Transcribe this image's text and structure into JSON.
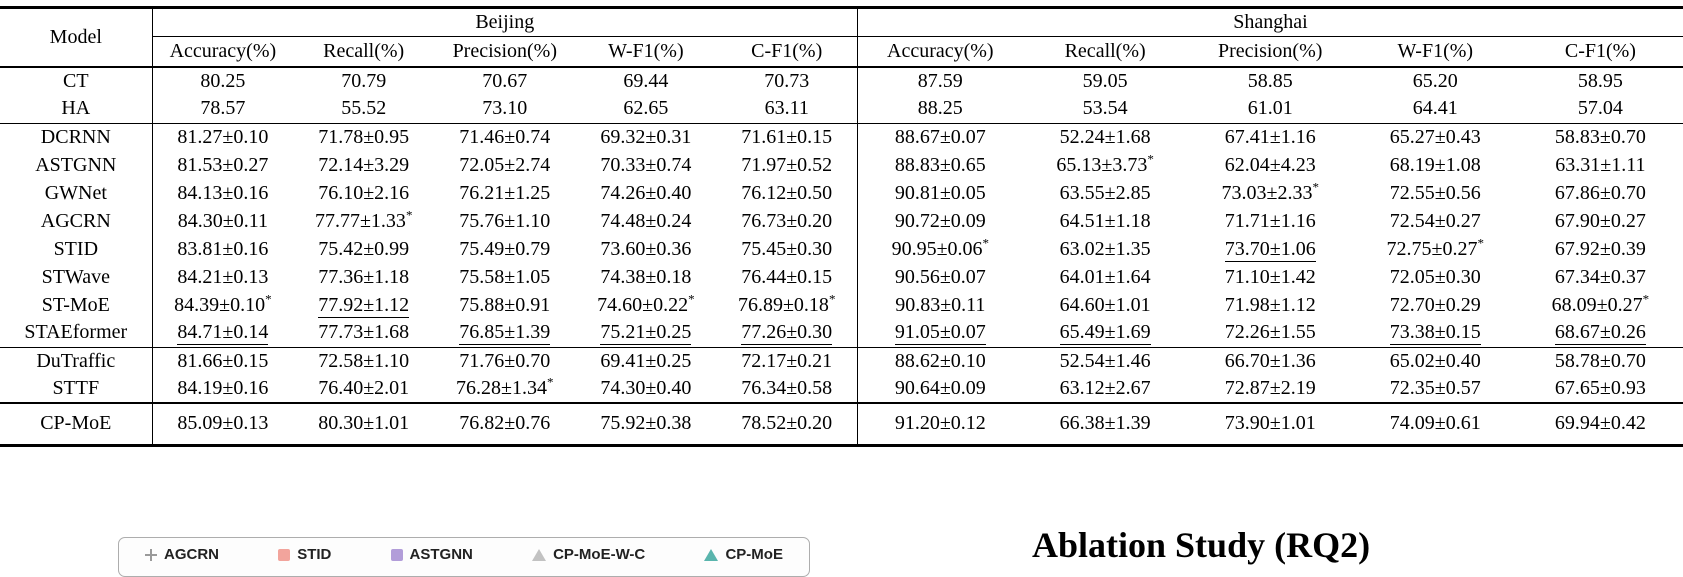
{
  "table": {
    "model_header": "Model",
    "regions": [
      "Beijing",
      "Shanghai"
    ],
    "metrics": [
      "Accuracy(%)",
      "Recall(%)",
      "Precision(%)",
      "W-F1(%)",
      "C-F1(%)"
    ],
    "groups": [
      {
        "bold": false,
        "rows": [
          {
            "model": "CT",
            "cells": [
              "80.25",
              "70.79",
              "70.67",
              "69.44",
              "70.73",
              "87.59",
              "59.05",
              "58.85",
              "65.20",
              "58.95"
            ]
          },
          {
            "model": "HA",
            "cells": [
              "78.57",
              "55.52",
              "73.10",
              "62.65",
              "63.11",
              "88.25",
              "53.54",
              "61.01",
              "64.41",
              "57.04"
            ]
          }
        ]
      },
      {
        "bold": false,
        "rows": [
          {
            "model": "DCRNN",
            "cells": [
              "81.27±0.10",
              "71.78±0.95",
              "71.46±0.74",
              "69.32±0.31",
              "71.61±0.15",
              "88.67±0.07",
              "52.24±1.68",
              "67.41±1.16",
              "65.27±0.43",
              "58.83±0.70"
            ]
          },
          {
            "model": "ASTGNN",
            "cells": [
              "81.53±0.27",
              "72.14±3.29",
              "72.05±2.74",
              "70.33±0.74",
              "71.97±0.52",
              "88.83±0.65",
              "65.13±3.73*",
              "62.04±4.23",
              "68.19±1.08",
              "63.31±1.11"
            ]
          },
          {
            "model": "GWNet",
            "cells": [
              "84.13±0.16",
              "76.10±2.16",
              "76.21±1.25",
              "74.26±0.40",
              "76.12±0.50",
              "90.81±0.05",
              "63.55±2.85",
              "73.03±2.33*",
              "72.55±0.56",
              "67.86±0.70"
            ]
          },
          {
            "model": "AGCRN",
            "cells": [
              "84.30±0.11",
              "77.77±1.33*",
              "75.76±1.10",
              "74.48±0.24",
              "76.73±0.20",
              "90.72±0.09",
              "64.51±1.18",
              "71.71±1.16",
              "72.54±0.27",
              "67.90±0.27"
            ]
          },
          {
            "model": "STID",
            "cells": [
              "83.81±0.16",
              "75.42±0.99",
              "75.49±0.79",
              "73.60±0.36",
              "75.45±0.30",
              "90.95±0.06*",
              "63.02±1.35",
              "73.70±1.06",
              "72.75±0.27*",
              "67.92±0.39"
            ],
            "underline": [
              7
            ]
          },
          {
            "model": "STWave",
            "cells": [
              "84.21±0.13",
              "77.36±1.18",
              "75.58±1.05",
              "74.38±0.18",
              "76.44±0.15",
              "90.56±0.07",
              "64.01±1.64",
              "71.10±1.42",
              "72.05±0.30",
              "67.34±0.37"
            ]
          },
          {
            "model": "ST-MoE",
            "cells": [
              "84.39±0.10*",
              "77.92±1.12",
              "75.88±0.91",
              "74.60±0.22*",
              "76.89±0.18*",
              "90.83±0.11",
              "64.60±1.01",
              "71.98±1.12",
              "72.70±0.29",
              "68.09±0.27*"
            ],
            "underline": [
              1
            ]
          },
          {
            "model": "STAEformer",
            "cells": [
              "84.71±0.14",
              "77.73±1.68",
              "76.85±1.39",
              "75.21±0.25",
              "77.26±0.30",
              "91.05±0.07",
              "65.49±1.69",
              "72.26±1.55",
              "73.38±0.15",
              "68.67±0.26"
            ],
            "underline": [
              0,
              2,
              3,
              4,
              5,
              6,
              8,
              9
            ]
          }
        ]
      },
      {
        "bold": false,
        "rows": [
          {
            "model": "DuTraffic",
            "cells": [
              "81.66±0.15",
              "72.58±1.10",
              "71.76±0.70",
              "69.41±0.25",
              "72.17±0.21",
              "88.62±0.10",
              "52.54±1.46",
              "66.70±1.36",
              "65.02±0.40",
              "58.78±0.70"
            ]
          },
          {
            "model": "STTF",
            "cells": [
              "84.19±0.16",
              "76.40±2.01",
              "76.28±1.34*",
              "74.30±0.40",
              "76.34±0.58",
              "90.64±0.09",
              "63.12±2.67",
              "72.87±2.19",
              "72.35±0.57",
              "67.65±0.93"
            ]
          }
        ]
      },
      {
        "bold": true,
        "rows": [
          {
            "model": "CP-MoE",
            "cells": [
              "85.09±0.13",
              "80.30±1.01",
              "76.82±0.76",
              "75.92±0.38",
              "78.52±0.20",
              "91.20±0.12",
              "66.38±1.39",
              "73.90±1.01",
              "74.09±0.61",
              "69.94±0.42"
            ]
          }
        ]
      }
    ]
  },
  "legend": {
    "items": [
      {
        "label": "AGCRN",
        "marker": "plus",
        "color": "#9a9a9a"
      },
      {
        "label": "STID",
        "marker": "square",
        "color": "#f2a49c"
      },
      {
        "label": "ASTGNN",
        "marker": "square",
        "color": "#b29dd9"
      },
      {
        "label": "CP-MoE-W-C",
        "marker": "triangle",
        "color": "#c2c2c2"
      },
      {
        "label": "CP-MoE",
        "marker": "triangle",
        "color": "#5ab5ad"
      }
    ]
  },
  "footer": {
    "heading": "Ablation Study (RQ2)"
  }
}
